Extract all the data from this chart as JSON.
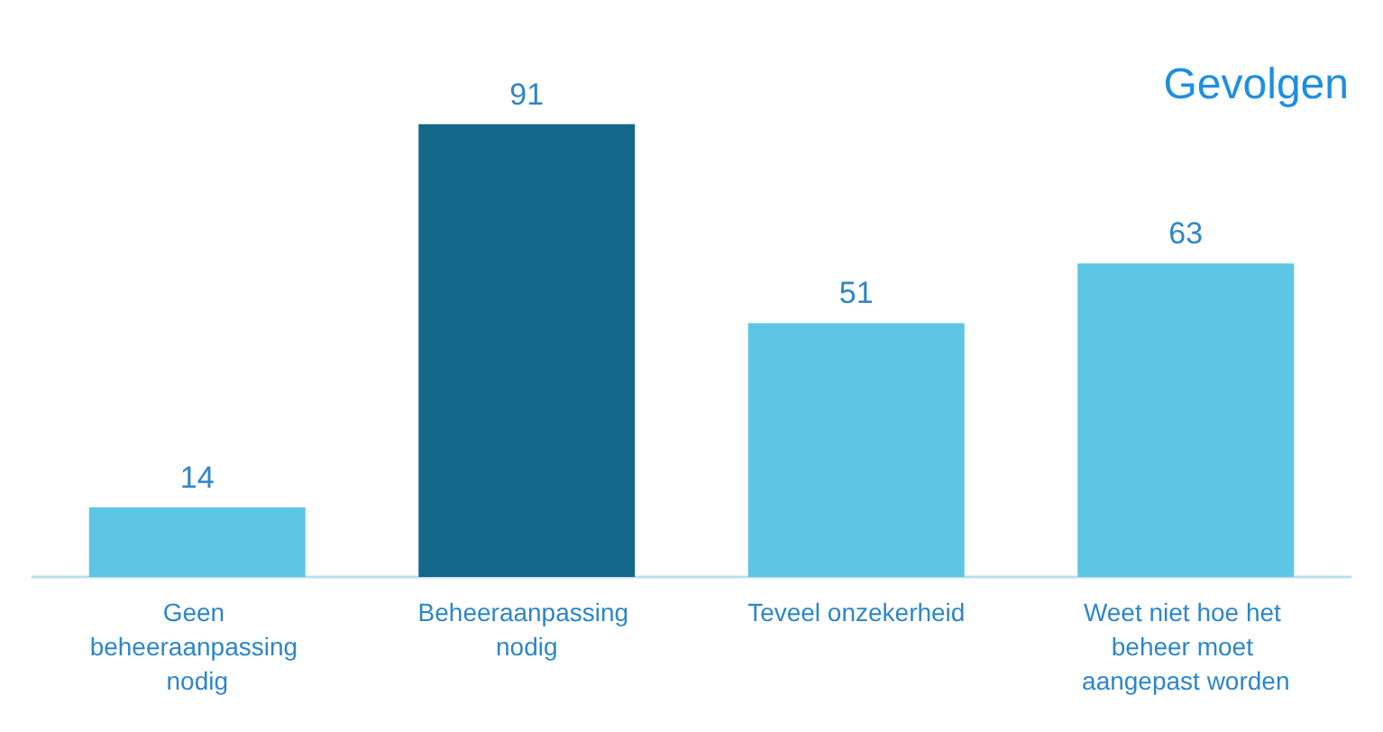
{
  "chart_data": {
    "type": "bar",
    "title": "Gevolgen",
    "categories": [
      "Geen beheeraanpassing nodig",
      "Beheeraanpassing nodig",
      "Teveel onzekerheid",
      "Weet niet hoe het beheer moet aangepast worden"
    ],
    "values": [
      14,
      91,
      51,
      63
    ],
    "colors": [
      "#5ec6e5",
      "#136789",
      "#5ec6e5",
      "#5ec6e5"
    ],
    "data_labels": true,
    "grid": false
  }
}
